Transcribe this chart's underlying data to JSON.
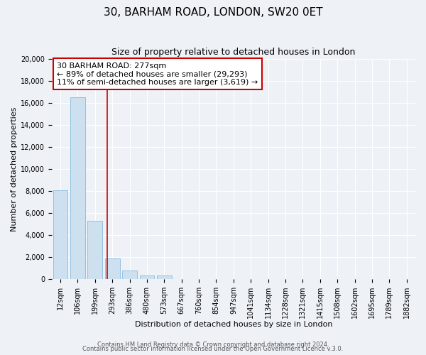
{
  "title": "30, BARHAM ROAD, LONDON, SW20 0ET",
  "subtitle": "Size of property relative to detached houses in London",
  "xlabel": "Distribution of detached houses by size in London",
  "ylabel": "Number of detached properties",
  "categories": [
    "12sqm",
    "106sqm",
    "199sqm",
    "293sqm",
    "386sqm",
    "480sqm",
    "573sqm",
    "667sqm",
    "760sqm",
    "854sqm",
    "947sqm",
    "1041sqm",
    "1134sqm",
    "1228sqm",
    "1321sqm",
    "1415sqm",
    "1508sqm",
    "1602sqm",
    "1695sqm",
    "1789sqm",
    "1882sqm"
  ],
  "values": [
    8100,
    16500,
    5300,
    1850,
    780,
    320,
    300,
    0,
    0,
    0,
    0,
    0,
    0,
    0,
    0,
    0,
    0,
    0,
    0,
    0,
    0
  ],
  "bar_color": "#cce0f0",
  "bar_edge_color": "#88bbdd",
  "property_line_x": 2.72,
  "property_line_color": "#cc0000",
  "annotation_line1": "30 BARHAM ROAD: 277sqm",
  "annotation_line2": "← 89% of detached houses are smaller (29,293)",
  "annotation_line3": "11% of semi-detached houses are larger (3,619) →",
  "annotation_box_color": "#ffffff",
  "annotation_box_edge_color": "#cc0000",
  "ylim": [
    0,
    20000
  ],
  "yticks": [
    0,
    2000,
    4000,
    6000,
    8000,
    10000,
    12000,
    14000,
    16000,
    18000,
    20000
  ],
  "background_color": "#eef2f7",
  "footer_line1": "Contains HM Land Registry data © Crown copyright and database right 2024.",
  "footer_line2": "Contains public sector information licensed under the Open Government Licence v.3.0.",
  "title_fontsize": 11,
  "subtitle_fontsize": 9,
  "axis_label_fontsize": 8,
  "tick_fontsize": 7,
  "annotation_fontsize": 8,
  "footer_fontsize": 6
}
